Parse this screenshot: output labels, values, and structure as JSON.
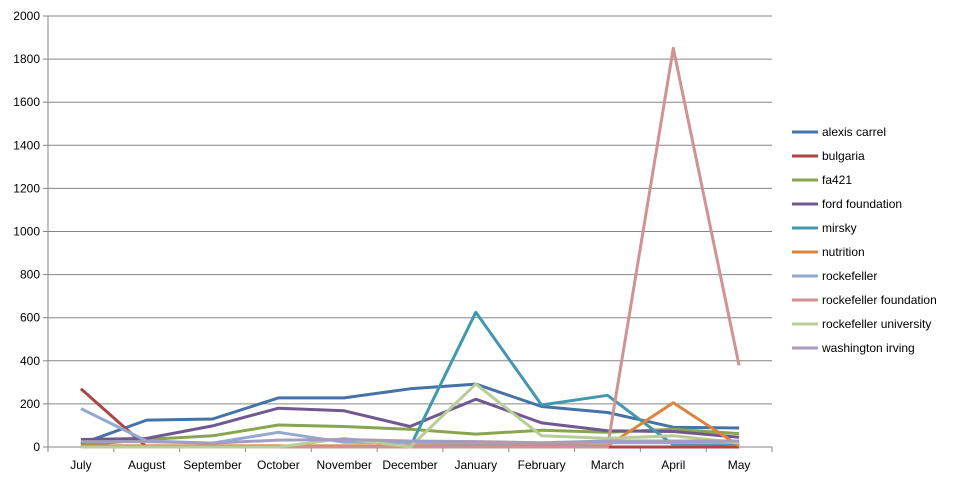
{
  "chart_data": {
    "type": "line",
    "title": "",
    "xlabel": "",
    "ylabel": "",
    "ylim": [
      0,
      2000
    ],
    "yticks": [
      0,
      200,
      400,
      600,
      800,
      1000,
      1200,
      1400,
      1600,
      1800,
      2000
    ],
    "grid": "horizontal",
    "legend": "right",
    "categories": [
      "July",
      "August",
      "September",
      "October",
      "November",
      "December",
      "January",
      "February",
      "March",
      "April",
      "May"
    ],
    "series": [
      {
        "name": "alexis carrel",
        "color": "#4572a7",
        "values": [
          15,
          125,
          130,
          228,
          228,
          270,
          292,
          188,
          160,
          92,
          88
        ]
      },
      {
        "name": "bulgaria",
        "color": "#aa4643",
        "values": [
          270,
          0,
          0,
          0,
          0,
          0,
          0,
          0,
          0,
          0,
          0
        ]
      },
      {
        "name": "fa421",
        "color": "#89a54e",
        "values": [
          8,
          35,
          52,
          102,
          95,
          82,
          60,
          78,
          68,
          82,
          62
        ]
      },
      {
        "name": "ford foundation",
        "color": "#71588f",
        "values": [
          35,
          40,
          98,
          180,
          168,
          95,
          222,
          112,
          75,
          72,
          45
        ]
      },
      {
        "name": "mirsky",
        "color": "#4198af",
        "values": [
          0,
          0,
          0,
          0,
          0,
          0,
          625,
          195,
          240,
          10,
          15
        ]
      },
      {
        "name": "nutrition",
        "color": "#db843d",
        "values": [
          5,
          5,
          5,
          5,
          5,
          5,
          5,
          5,
          5,
          205,
          5
        ]
      },
      {
        "name": "rockefeller",
        "color": "#93a9cf",
        "values": [
          178,
          28,
          18,
          68,
          22,
          20,
          18,
          18,
          20,
          20,
          20
        ]
      },
      {
        "name": "rockefeller foundation",
        "color": "#d19392",
        "values": [
          0,
          0,
          0,
          0,
          0,
          0,
          0,
          0,
          0,
          1850,
          378
        ]
      },
      {
        "name": "rockefeller university",
        "color": "#b9cd96",
        "values": [
          0,
          0,
          0,
          0,
          40,
          0,
          292,
          52,
          40,
          52,
          20
        ]
      },
      {
        "name": "washington irving",
        "color": "#a99bbd",
        "values": [
          25,
          25,
          18,
          32,
          35,
          28,
          25,
          20,
          28,
          28,
          28
        ]
      }
    ]
  }
}
